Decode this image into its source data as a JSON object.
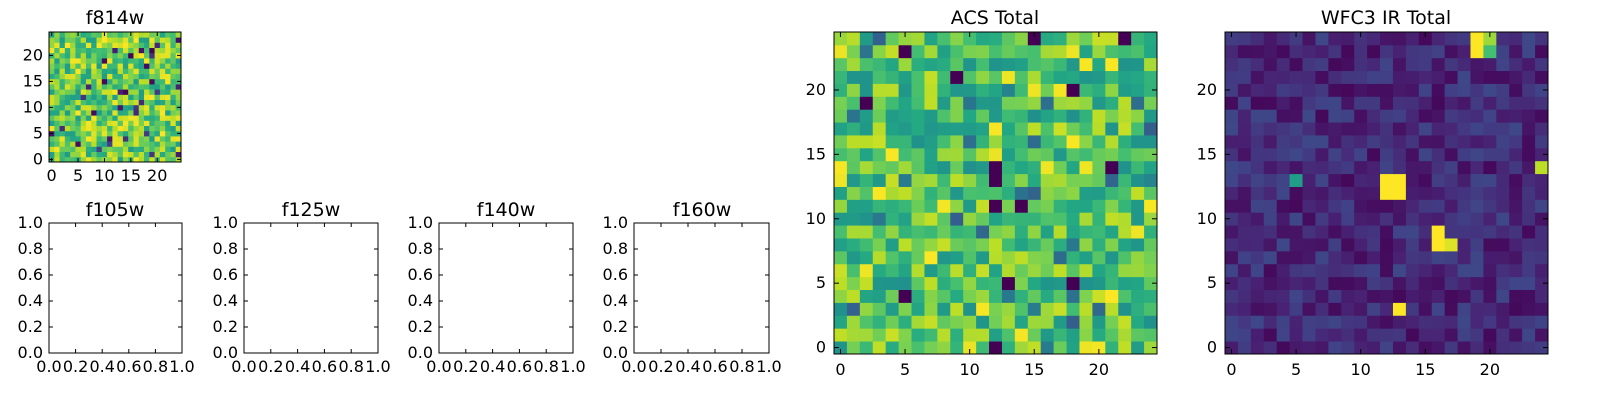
{
  "panels": {
    "f814w": {
      "title": "f814w"
    },
    "f105w": {
      "title": "f105w"
    },
    "f125w": {
      "title": "f125w"
    },
    "f140w": {
      "title": "f140w"
    },
    "f160w": {
      "title": "f160w"
    },
    "acs": {
      "title": "ACS Total"
    },
    "wfc3": {
      "title": "WFC3 IR Total"
    }
  },
  "chart_data": [
    {
      "type": "heatmap",
      "title": "f814w",
      "colormap": "viridis",
      "grid_size": [
        25,
        25
      ],
      "xlim": [
        -0.5,
        24.5
      ],
      "ylim": [
        -0.5,
        24.5
      ],
      "xticks": [
        0,
        5,
        10,
        15,
        20
      ],
      "yticks": [
        0,
        5,
        10,
        15,
        20
      ],
      "value_range": [
        0,
        1
      ],
      "values": "25x25 random noise field (mostly high values, scattered low pixels)"
    },
    {
      "type": "empty",
      "title": "f105w",
      "xlim": [
        0,
        1
      ],
      "ylim": [
        0,
        1
      ],
      "xticks": [
        "0.0",
        "0.2",
        "0.4",
        "0.6",
        "0.8",
        "1.0"
      ],
      "yticks": [
        "0.0",
        "0.2",
        "0.4",
        "0.6",
        "0.8",
        "1.0"
      ]
    },
    {
      "type": "empty",
      "title": "f125w",
      "xlim": [
        0,
        1
      ],
      "ylim": [
        0,
        1
      ],
      "xticks": [
        "0.0",
        "0.2",
        "0.4",
        "0.6",
        "0.8",
        "1.0"
      ],
      "yticks": [
        "0.0",
        "0.2",
        "0.4",
        "0.6",
        "0.8",
        "1.0"
      ]
    },
    {
      "type": "empty",
      "title": "f140w",
      "xlim": [
        0,
        1
      ],
      "ylim": [
        0,
        1
      ],
      "xticks": [
        "0.0",
        "0.2",
        "0.4",
        "0.6",
        "0.8",
        "1.0"
      ],
      "yticks": [
        "0.0",
        "0.2",
        "0.4",
        "0.6",
        "0.8",
        "1.0"
      ]
    },
    {
      "type": "empty",
      "title": "f160w",
      "xlim": [
        0,
        1
      ],
      "ylim": [
        0,
        1
      ],
      "xticks": [
        "0.0",
        "0.2",
        "0.4",
        "0.6",
        "0.8",
        "1.0"
      ],
      "yticks": [
        "0.0",
        "0.2",
        "0.4",
        "0.6",
        "0.8",
        "1.0"
      ]
    },
    {
      "type": "heatmap",
      "title": "ACS Total",
      "colormap": "viridis",
      "grid_size": [
        25,
        25
      ],
      "xlim": [
        -0.5,
        24.5
      ],
      "ylim": [
        -0.5,
        24.5
      ],
      "xticks": [
        0,
        5,
        10,
        15,
        20
      ],
      "yticks": [
        0,
        5,
        10,
        15,
        20
      ],
      "value_range": [
        0,
        1
      ],
      "values": "25x25 random noise field (mostly mid-to-high values)"
    },
    {
      "type": "heatmap",
      "title": "WFC3 IR Total",
      "colormap": "viridis",
      "grid_size": [
        25,
        25
      ],
      "xlim": [
        -0.5,
        24.5
      ],
      "ylim": [
        -0.5,
        24.5
      ],
      "xticks": [
        0,
        5,
        10,
        15,
        20
      ],
      "yticks": [
        0,
        5,
        10,
        15,
        20
      ],
      "value_range": [
        0,
        1
      ],
      "values": "25x25 low background with bright sources",
      "bright_pixels": [
        {
          "x": 19,
          "y": 23,
          "v": 1.0
        },
        {
          "x": 19,
          "y": 24,
          "v": 1.0
        },
        {
          "x": 20,
          "y": 24,
          "v": 0.85
        },
        {
          "x": 20,
          "y": 23,
          "v": 0.7
        },
        {
          "x": 12,
          "y": 13,
          "v": 1.0
        },
        {
          "x": 13,
          "y": 13,
          "v": 1.0
        },
        {
          "x": 12,
          "y": 12,
          "v": 1.0
        },
        {
          "x": 13,
          "y": 12,
          "v": 1.0
        },
        {
          "x": 16,
          "y": 9,
          "v": 1.0
        },
        {
          "x": 16,
          "y": 8,
          "v": 1.0
        },
        {
          "x": 17,
          "y": 8,
          "v": 0.95
        },
        {
          "x": 13,
          "y": 3,
          "v": 1.0
        },
        {
          "x": 24,
          "y": 14,
          "v": 0.9
        },
        {
          "x": 5,
          "y": 13,
          "v": 0.55
        }
      ]
    }
  ]
}
